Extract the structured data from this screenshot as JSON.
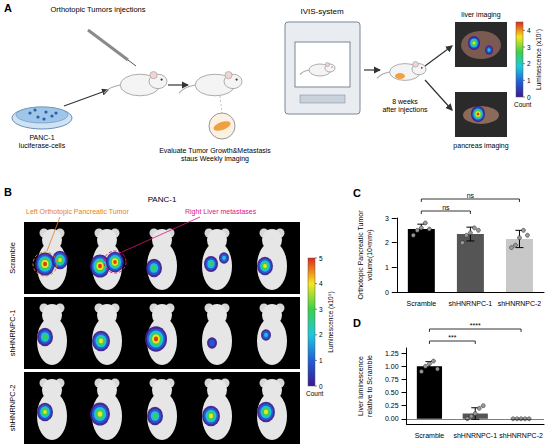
{
  "figure": {
    "panel_a": {
      "label": "A",
      "cells": "PANC-1\nluciferase-cells",
      "injection": "Orthotopic Tumors injections",
      "evaluate": "Evaluate Tumor Growth&Metastasis\nstaus Weekly imaging",
      "system": "IVIS-system",
      "timepoint": "8 weeks\nafter injections",
      "liver": "liver imaging",
      "pancreas": "pancreas imaging",
      "colorbar": {
        "title": "Luminescence (x10⁷)",
        "range": [
          0,
          4.5
        ],
        "ticks": [
          0,
          1,
          2,
          3,
          4
        ],
        "unit": "Count"
      }
    },
    "panel_b": {
      "label": "B",
      "cell_line": "PANC-1",
      "left_annotation": "Left Orthotopic Pancreatic Tumor",
      "right_annotation": "Right Liver metastases",
      "rows": [
        "Scramble",
        "shHNRNPC-1",
        "shHNRNPC-2"
      ],
      "colorbar": {
        "title": "Luminescence (x10⁹)",
        "range": [
          0,
          5
        ],
        "ticks": [
          0,
          1,
          2,
          3,
          4,
          5
        ],
        "unit": "Count"
      }
    }
  },
  "chart_data": [
    {
      "panel": "C",
      "type": "bar",
      "categories": [
        "Scramble",
        "shHNRNPC-1",
        "shHNRNPC-2"
      ],
      "values": [
        2.55,
        2.35,
        2.15
      ],
      "errors": [
        0.2,
        0.28,
        0.35
      ],
      "points": [
        [
          2.3,
          2.5,
          2.6,
          2.8,
          2.55
        ],
        [
          2.0,
          2.3,
          2.4,
          2.6,
          2.5
        ],
        [
          1.8,
          1.9,
          2.2,
          2.5,
          2.3
        ]
      ],
      "colors": [
        "#000000",
        "#555555",
        "#c8c8c8"
      ],
      "ylabel": "Orthotopic Pancreatic Tumor\nvolume(10³mm³)",
      "ylim": [
        0,
        3
      ],
      "yticks": [
        0,
        1,
        2,
        3
      ],
      "grid": false,
      "comparisons": [
        {
          "from": "Scramble",
          "to": "shHNRNPC-1",
          "label": "ns"
        },
        {
          "from": "Scramble",
          "to": "shHNRNPC-2",
          "label": "ns"
        }
      ]
    },
    {
      "panel": "D",
      "type": "bar",
      "categories": [
        "Scramble",
        "shHNRNPC-1",
        "shHNRNPC-2"
      ],
      "values": [
        1.0,
        0.1,
        0.0
      ],
      "errors": [
        0.09,
        0.11,
        0.0
      ],
      "points": [
        [
          0.9,
          1.0,
          1.05,
          1.1,
          0.95
        ],
        [
          0.0,
          0.05,
          0.1,
          0.2,
          0.25
        ],
        [
          0,
          0,
          0,
          0,
          0
        ]
      ],
      "colors": [
        "#000000",
        "#555555",
        "#c8c8c8"
      ],
      "ylabel": "Liver luminescence\nrelative to Scramble",
      "ylim": [
        -0.1,
        1.35
      ],
      "yticks": [
        {
          "value": 0,
          "label": "0.00"
        },
        {
          "value": 0.25,
          "label": "0.25"
        },
        {
          "value": 0.5,
          "label": "0.50"
        },
        {
          "value": 0.75,
          "label": "0.75"
        },
        {
          "value": 1,
          "label": "1.00"
        },
        {
          "value": 1.25,
          "label": "1.25"
        }
      ],
      "reference_line": 0,
      "grid": false,
      "comparisons": [
        {
          "from": "Scramble",
          "to": "shHNRNPC-1",
          "label": "***"
        },
        {
          "from": "Scramble",
          "to": "shHNRNPC-2",
          "label": "****"
        }
      ]
    }
  ]
}
